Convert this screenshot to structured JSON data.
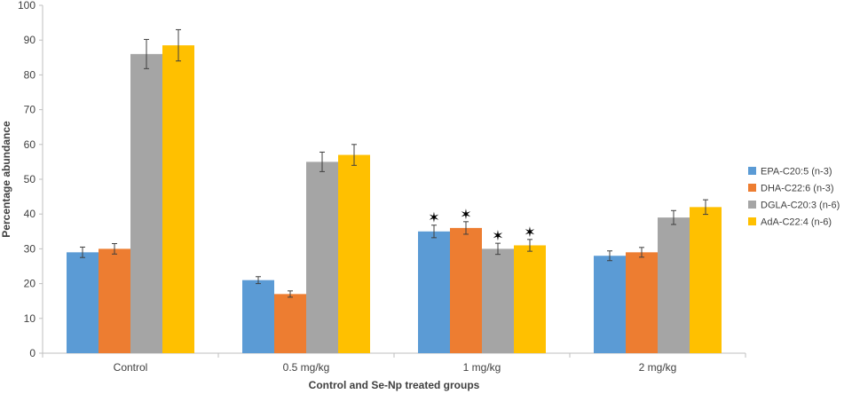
{
  "chart_data": {
    "type": "bar",
    "title": "",
    "xlabel": "Control and Se-Np treated groups",
    "ylabel": "Percentage abundance",
    "ylim": [
      0,
      100
    ],
    "yticks": [
      0,
      10,
      20,
      30,
      40,
      50,
      60,
      70,
      80,
      90,
      100
    ],
    "grid": false,
    "legend_position": "right",
    "categories": [
      "Control",
      "0.5 mg/kg",
      "1 mg/kg",
      "2 mg/kg"
    ],
    "series": [
      {
        "name": "EPA-C20:5 (n-3)",
        "color": "#5B9BD5",
        "values": [
          29,
          21,
          35,
          28
        ],
        "errors": [
          1.5,
          1.0,
          1.8,
          1.4
        ],
        "significant": [
          false,
          false,
          true,
          false
        ]
      },
      {
        "name": "DHA-C22:6 (n-3)",
        "color": "#ED7D31",
        "values": [
          30,
          17,
          36,
          29
        ],
        "errors": [
          1.5,
          0.9,
          1.8,
          1.4
        ],
        "significant": [
          false,
          false,
          true,
          false
        ]
      },
      {
        "name": "DGLA-C20:3 (n-6)",
        "color": "#A5A5A5",
        "values": [
          86,
          55,
          30,
          39
        ],
        "errors": [
          4.2,
          2.8,
          1.6,
          2.0
        ],
        "significant": [
          false,
          false,
          true,
          false
        ]
      },
      {
        "name": "AdA-C22:4 (n-6)",
        "color": "#FFC000",
        "values": [
          88.5,
          57,
          31,
          42
        ],
        "errors": [
          4.5,
          3.0,
          1.7,
          2.1
        ],
        "significant": [
          false,
          false,
          true,
          false
        ]
      }
    ],
    "significance_marker": "✶"
  }
}
